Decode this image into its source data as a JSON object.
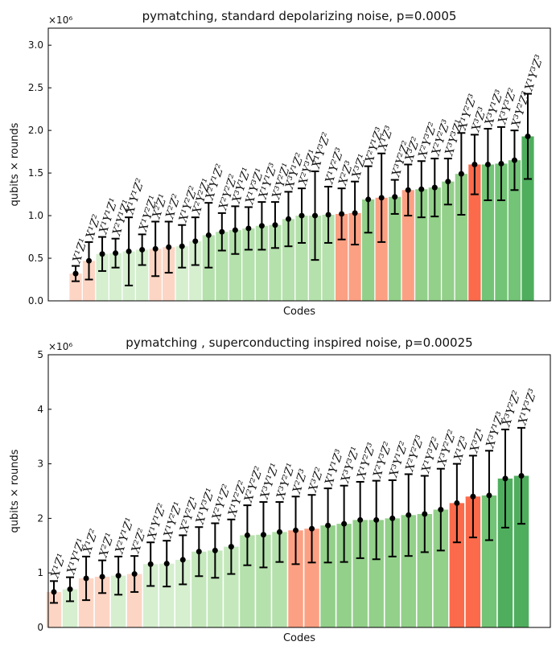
{
  "chart_data": [
    {
      "type": "bar",
      "title": "pymatching, standard depolarizing noise, p=0.0005",
      "xlabel": "Codes",
      "ylabel": "qubits × rounds",
      "axis_multiplier": "×10⁶",
      "categories": [
        "X¹Z¹",
        "X¹Z²",
        "X¹Y¹Z¹",
        "X²Y¹Z¹",
        "X¹Y¹Z²",
        "X¹Y²Z¹",
        "X²Z¹",
        "X²Z²",
        "X¹Y²Z²",
        "X²Y²Z¹",
        "X²Y¹Z²",
        "X²Y²Z²",
        "X³Y¹Z¹",
        "X¹Y³Z¹",
        "X¹Y¹Z³",
        "X³Y²Z¹",
        "X³Y¹Z²",
        "X²Y³Z¹",
        "X¹Y³Z²",
        "X¹Y²Z³",
        "X²Z³",
        "X³Z¹",
        "X²Y¹Z³",
        "X¹Z³",
        "X³Y²Z²",
        "X³Z²",
        "X²Y³Z²",
        "X²Y²Z³",
        "X³Y³Z¹",
        "X¹Y²Z³",
        "X³Z³",
        "X³Y¹Z³",
        "X³Y³Z²",
        "X³Y²Z³",
        "X¹Y³Z³"
      ],
      "values": [
        0.32,
        0.47,
        0.55,
        0.56,
        0.58,
        0.6,
        0.61,
        0.63,
        0.64,
        0.7,
        0.77,
        0.81,
        0.83,
        0.85,
        0.88,
        0.89,
        0.96,
        1.0,
        1.0,
        1.01,
        1.02,
        1.03,
        1.19,
        1.21,
        1.22,
        1.3,
        1.31,
        1.33,
        1.4,
        1.49,
        1.6,
        1.6,
        1.61,
        1.65,
        1.93
      ],
      "errors": [
        0.09,
        0.22,
        0.2,
        0.17,
        0.4,
        0.18,
        0.32,
        0.3,
        0.25,
        0.28,
        0.38,
        0.22,
        0.28,
        0.25,
        0.28,
        0.27,
        0.32,
        0.32,
        0.52,
        0.33,
        0.3,
        0.37,
        0.39,
        0.52,
        0.2,
        0.3,
        0.33,
        0.34,
        0.27,
        0.48,
        0.35,
        0.42,
        0.43,
        0.35,
        0.5
      ],
      "colors": [
        "#fdd5c4",
        "#fdd5c4",
        "#d5efcf",
        "#d5efcf",
        "#d5efcf",
        "#d5efcf",
        "#fdd5c4",
        "#fdd5c4",
        "#d5efcf",
        "#d5efcf",
        "#b5e1ac",
        "#b5e1ac",
        "#b5e1ac",
        "#b5e1ac",
        "#b5e1ac",
        "#b5e1ac",
        "#b5e1ac",
        "#b5e1ac",
        "#b5e1ac",
        "#b5e1ac",
        "#fca083",
        "#fca083",
        "#93d08a",
        "#fca083",
        "#93d08a",
        "#fca083",
        "#93d08a",
        "#93d08a",
        "#93d08a",
        "#93d08a",
        "#fb6b4b",
        "#73c476",
        "#73c476",
        "#73c476",
        "#4fae5e"
      ],
      "ylim": [
        0,
        3.2
      ],
      "yticks": [
        {
          "value": 0,
          "label": "0.0"
        },
        0.5,
        {
          "value": 1,
          "label": "1.0"
        },
        1.5,
        {
          "value": 2,
          "label": "2.0"
        },
        2.5,
        {
          "value": 3,
          "label": "3.0"
        }
      ]
    },
    {
      "type": "bar",
      "title": "pymatching , superconducting inspired noise, p=0.00025",
      "xlabel": "Codes",
      "ylabel": "qubits × rounds",
      "axis_multiplier": "×10⁶",
      "categories": [
        "X¹Z¹",
        "X¹Y¹Z¹",
        "X¹Z²",
        "X²Z¹",
        "X²Y¹Z¹",
        "X²Z²",
        "X¹Y¹Z²",
        "X¹Y²Z¹",
        "X²Y²Z¹",
        "X¹Y³Z¹",
        "X²Y¹Z²",
        "X¹Y²Z²",
        "X²Y²Z²",
        "X³Y¹Z¹",
        "X³Y²Z¹",
        "X²Z³",
        "X³Z²",
        "X¹Y¹Z³",
        "X³Y³Z¹",
        "X¹Y²Z³",
        "X²Y³Z²",
        "X³Y¹Z²",
        "X²Y²Z³",
        "X¹Y³Z²",
        "X³Y²Z²",
        "X¹Z³",
        "X³Z¹",
        "X³Y¹Z³",
        "X³Y²Z²",
        "X¹Y³Z³"
      ],
      "values": [
        0.65,
        0.7,
        0.9,
        0.93,
        0.95,
        0.98,
        1.16,
        1.17,
        1.24,
        1.39,
        1.41,
        1.48,
        1.69,
        1.7,
        1.75,
        1.78,
        1.81,
        1.87,
        1.9,
        1.97,
        1.97,
        2.0,
        2.06,
        2.08,
        2.16,
        2.28,
        2.4,
        2.42,
        2.73,
        2.78
      ],
      "errors": [
        0.2,
        0.22,
        0.4,
        0.3,
        0.35,
        0.33,
        0.4,
        0.42,
        0.45,
        0.45,
        0.5,
        0.5,
        0.55,
        0.6,
        0.55,
        0.62,
        0.62,
        0.68,
        0.7,
        0.7,
        0.72,
        0.7,
        0.75,
        0.7,
        0.75,
        0.72,
        0.75,
        0.82,
        0.9,
        0.88
      ],
      "colors": [
        "#fdd5c4",
        "#d5efcf",
        "#fdd5c4",
        "#fdd5c4",
        "#d5efcf",
        "#fdd5c4",
        "#d5efcf",
        "#d5efcf",
        "#d5efcf",
        "#c4e8bc",
        "#c4e8bc",
        "#c4e8bc",
        "#b5e1ac",
        "#b5e1ac",
        "#b5e1ac",
        "#fca083",
        "#fca083",
        "#93d08a",
        "#93d08a",
        "#93d08a",
        "#93d08a",
        "#93d08a",
        "#93d08a",
        "#93d08a",
        "#93d08a",
        "#fb6b4b",
        "#fb6b4b",
        "#73c476",
        "#4fae5e",
        "#4fae5e"
      ],
      "ylim": [
        0,
        5
      ],
      "yticks": [
        0,
        1,
        2,
        3,
        4,
        5
      ]
    }
  ]
}
